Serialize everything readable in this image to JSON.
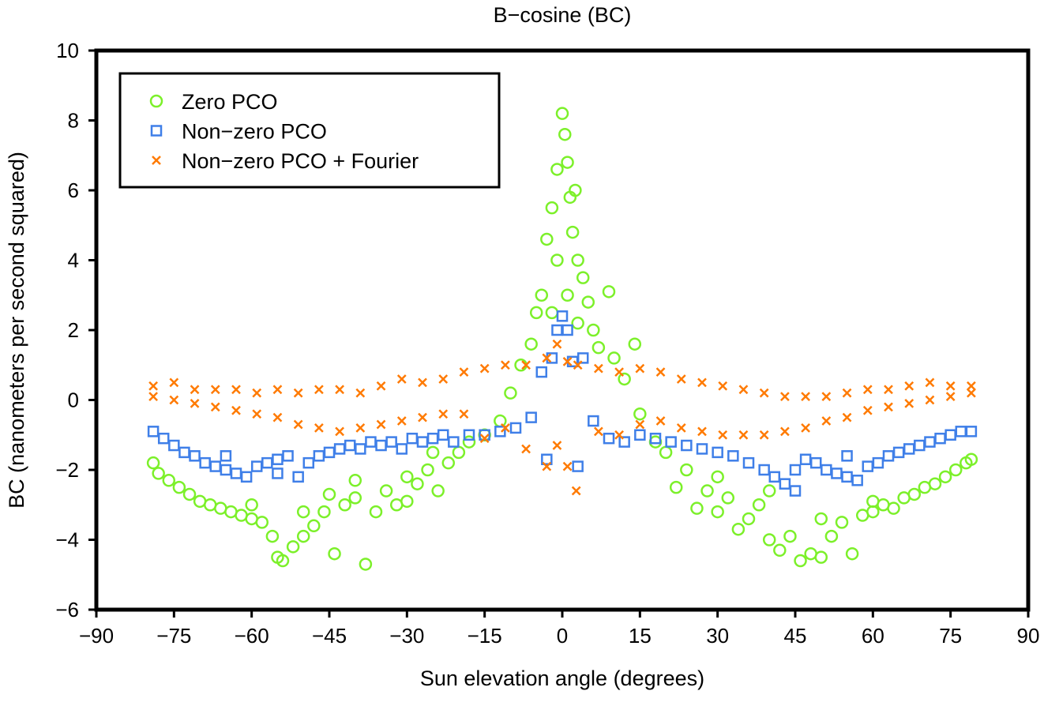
{
  "chart_data": {
    "type": "scatter",
    "title": "B−cosine (BC)",
    "xlabel": "Sun elevation angle (degrees)",
    "ylabel": "BC (nanometers per second squared)",
    "xlim": [
      -90,
      90
    ],
    "ylim": [
      -6,
      10
    ],
    "xticks": [
      -90,
      -75,
      -60,
      -45,
      -30,
      -15,
      0,
      15,
      30,
      45,
      60,
      75,
      90
    ],
    "xtick_labels": [
      "−90",
      "−75",
      "−60",
      "−45",
      "−30",
      "−15",
      "0",
      "15",
      "30",
      "45",
      "60",
      "75",
      "90"
    ],
    "yticks": [
      -6,
      -4,
      -2,
      0,
      2,
      4,
      6,
      8,
      10
    ],
    "ytick_labels": [
      "−6",
      "−4",
      "−2",
      "0",
      "2",
      "4",
      "6",
      "8",
      "10"
    ],
    "grid": false,
    "legend_position": "top-left",
    "series": [
      {
        "name": "Zero PCO",
        "marker": "circle",
        "color": "#7cf02a",
        "points": [
          [
            -79,
            -1.8
          ],
          [
            -78,
            -2.1
          ],
          [
            -76,
            -2.3
          ],
          [
            -74,
            -2.5
          ],
          [
            -72,
            -2.7
          ],
          [
            -70,
            -2.9
          ],
          [
            -68,
            -3.0
          ],
          [
            -66,
            -3.1
          ],
          [
            -64,
            -3.2
          ],
          [
            -62,
            -3.3
          ],
          [
            -60,
            -3.4
          ],
          [
            -58,
            -3.5
          ],
          [
            -56,
            -3.9
          ],
          [
            -55,
            -4.5
          ],
          [
            -54,
            -4.6
          ],
          [
            -52,
            -4.2
          ],
          [
            -50,
            -3.9
          ],
          [
            -48,
            -3.6
          ],
          [
            -46,
            -3.2
          ],
          [
            -44,
            -4.4
          ],
          [
            -42,
            -3.0
          ],
          [
            -40,
            -2.8
          ],
          [
            -38,
            -4.7
          ],
          [
            -36,
            -3.2
          ],
          [
            -34,
            -2.6
          ],
          [
            -32,
            -3.0
          ],
          [
            -30,
            -2.9
          ],
          [
            -28,
            -2.4
          ],
          [
            -26,
            -2.0
          ],
          [
            -24,
            -2.6
          ],
          [
            -22,
            -1.8
          ],
          [
            -20,
            -1.5
          ],
          [
            -18,
            -1.2
          ],
          [
            -15,
            -1.0
          ],
          [
            -12,
            -0.6
          ],
          [
            -10,
            0.2
          ],
          [
            -8,
            1.0
          ],
          [
            -6,
            1.6
          ],
          [
            -5,
            2.5
          ],
          [
            -4,
            3.0
          ],
          [
            -3,
            4.6
          ],
          [
            -2,
            5.5
          ],
          [
            -1,
            6.6
          ],
          [
            0,
            8.2
          ],
          [
            0.5,
            7.6
          ],
          [
            1,
            6.8
          ],
          [
            1.5,
            5.8
          ],
          [
            2,
            4.8
          ],
          [
            2.5,
            6.0
          ],
          [
            3,
            4.0
          ],
          [
            4,
            3.5
          ],
          [
            5,
            2.8
          ],
          [
            6,
            2.0
          ],
          [
            7,
            1.5
          ],
          [
            9,
            3.1
          ],
          [
            10,
            1.2
          ],
          [
            12,
            0.6
          ],
          [
            14,
            1.6
          ],
          [
            15,
            -0.4
          ],
          [
            18,
            -1.2
          ],
          [
            20,
            -1.5
          ],
          [
            22,
            -2.5
          ],
          [
            24,
            -2.0
          ],
          [
            26,
            -3.1
          ],
          [
            28,
            -2.6
          ],
          [
            30,
            -3.2
          ],
          [
            32,
            -2.8
          ],
          [
            34,
            -3.7
          ],
          [
            36,
            -3.4
          ],
          [
            38,
            -3.0
          ],
          [
            40,
            -4.0
          ],
          [
            42,
            -4.3
          ],
          [
            44,
            -3.9
          ],
          [
            46,
            -4.6
          ],
          [
            48,
            -4.4
          ],
          [
            50,
            -4.5
          ],
          [
            52,
            -3.9
          ],
          [
            54,
            -3.5
          ],
          [
            56,
            -4.4
          ],
          [
            58,
            -3.3
          ],
          [
            60,
            -3.2
          ],
          [
            62,
            -3.0
          ],
          [
            64,
            -3.1
          ],
          [
            66,
            -2.8
          ],
          [
            68,
            -2.7
          ],
          [
            70,
            -2.5
          ],
          [
            72,
            -2.4
          ],
          [
            74,
            -2.2
          ],
          [
            76,
            -2.0
          ],
          [
            78,
            -1.8
          ],
          [
            79,
            -1.7
          ],
          [
            -60,
            -3.0
          ],
          [
            -50,
            -3.2
          ],
          [
            -45,
            -2.7
          ],
          [
            -40,
            -2.3
          ],
          [
            -30,
            -2.2
          ],
          [
            -25,
            -1.5
          ],
          [
            30,
            -2.2
          ],
          [
            40,
            -2.6
          ],
          [
            50,
            -3.4
          ],
          [
            60,
            -2.9
          ],
          [
            -1,
            4.0
          ],
          [
            1,
            3.0
          ],
          [
            -2,
            2.5
          ],
          [
            3,
            2.2
          ]
        ]
      },
      {
        "name": "Non−zero PCO",
        "marker": "square",
        "color": "#3f7fe8",
        "points": [
          [
            -79,
            -0.9
          ],
          [
            -77,
            -1.1
          ],
          [
            -75,
            -1.3
          ],
          [
            -73,
            -1.5
          ],
          [
            -71,
            -1.6
          ],
          [
            -69,
            -1.8
          ],
          [
            -67,
            -1.9
          ],
          [
            -65,
            -2.0
          ],
          [
            -63,
            -2.1
          ],
          [
            -61,
            -2.2
          ],
          [
            -59,
            -1.9
          ],
          [
            -57,
            -1.8
          ],
          [
            -55,
            -1.7
          ],
          [
            -53,
            -1.6
          ],
          [
            -51,
            -2.2
          ],
          [
            -49,
            -1.8
          ],
          [
            -47,
            -1.6
          ],
          [
            -45,
            -1.5
          ],
          [
            -43,
            -1.4
          ],
          [
            -41,
            -1.3
          ],
          [
            -39,
            -1.4
          ],
          [
            -37,
            -1.2
          ],
          [
            -35,
            -1.3
          ],
          [
            -33,
            -1.2
          ],
          [
            -31,
            -1.4
          ],
          [
            -29,
            -1.1
          ],
          [
            -27,
            -1.2
          ],
          [
            -25,
            -1.1
          ],
          [
            -23,
            -1.0
          ],
          [
            -21,
            -1.2
          ],
          [
            -18,
            -1.0
          ],
          [
            -15,
            -1.0
          ],
          [
            -12,
            -0.9
          ],
          [
            -9,
            -0.8
          ],
          [
            -6,
            -0.5
          ],
          [
            -4,
            0.8
          ],
          [
            -3,
            -1.7
          ],
          [
            -2,
            1.2
          ],
          [
            -1,
            2.0
          ],
          [
            0,
            2.4
          ],
          [
            1,
            2.0
          ],
          [
            2,
            1.1
          ],
          [
            3,
            -1.9
          ],
          [
            4,
            1.2
          ],
          [
            6,
            -0.6
          ],
          [
            9,
            -1.1
          ],
          [
            12,
            -1.2
          ],
          [
            15,
            -1.0
          ],
          [
            18,
            -1.1
          ],
          [
            21,
            -1.2
          ],
          [
            24,
            -1.3
          ],
          [
            27,
            -1.4
          ],
          [
            30,
            -1.5
          ],
          [
            33,
            -1.6
          ],
          [
            36,
            -1.8
          ],
          [
            39,
            -2.0
          ],
          [
            41,
            -2.2
          ],
          [
            43,
            -2.4
          ],
          [
            45,
            -2.6
          ],
          [
            47,
            -1.7
          ],
          [
            49,
            -1.8
          ],
          [
            51,
            -2.0
          ],
          [
            53,
            -2.1
          ],
          [
            55,
            -2.2
          ],
          [
            57,
            -2.3
          ],
          [
            59,
            -1.9
          ],
          [
            61,
            -1.8
          ],
          [
            63,
            -1.6
          ],
          [
            65,
            -1.5
          ],
          [
            67,
            -1.4
          ],
          [
            69,
            -1.3
          ],
          [
            71,
            -1.2
          ],
          [
            73,
            -1.1
          ],
          [
            75,
            -1.0
          ],
          [
            77,
            -0.9
          ],
          [
            79,
            -0.9
          ],
          [
            -65,
            -1.6
          ],
          [
            -55,
            -2.1
          ],
          [
            45,
            -2.0
          ],
          [
            55,
            -1.6
          ]
        ]
      },
      {
        "name": "Non−zero PCO + Fourier",
        "marker": "x",
        "color": "#ff7a00",
        "points": [
          [
            -79,
            0.4
          ],
          [
            -79,
            0.1
          ],
          [
            -75,
            0.5
          ],
          [
            -75,
            0.0
          ],
          [
            -71,
            0.3
          ],
          [
            -71,
            -0.1
          ],
          [
            -67,
            0.3
          ],
          [
            -67,
            -0.2
          ],
          [
            -63,
            0.3
          ],
          [
            -63,
            -0.3
          ],
          [
            -59,
            0.2
          ],
          [
            -59,
            -0.4
          ],
          [
            -55,
            0.3
          ],
          [
            -55,
            -0.5
          ],
          [
            -51,
            0.2
          ],
          [
            -51,
            -0.7
          ],
          [
            -47,
            0.3
          ],
          [
            -47,
            -0.8
          ],
          [
            -43,
            0.3
          ],
          [
            -43,
            -0.9
          ],
          [
            -39,
            0.2
          ],
          [
            -39,
            -0.8
          ],
          [
            -35,
            0.4
          ],
          [
            -35,
            -0.7
          ],
          [
            -31,
            0.6
          ],
          [
            -31,
            -0.6
          ],
          [
            -27,
            0.5
          ],
          [
            -27,
            -0.5
          ],
          [
            -23,
            0.6
          ],
          [
            -23,
            -0.4
          ],
          [
            -19,
            0.8
          ],
          [
            -19,
            -0.4
          ],
          [
            -15,
            0.9
          ],
          [
            -15,
            -1.1
          ],
          [
            -11,
            1.0
          ],
          [
            -11,
            -0.8
          ],
          [
            -7,
            1.0
          ],
          [
            -7,
            -1.4
          ],
          [
            -3,
            1.2
          ],
          [
            -3,
            -1.9
          ],
          [
            -1,
            1.6
          ],
          [
            -1,
            -1.3
          ],
          [
            1,
            1.1
          ],
          [
            1,
            -1.9
          ],
          [
            3,
            1.0
          ],
          [
            2.7,
            -2.6
          ],
          [
            7,
            0.9
          ],
          [
            7,
            -0.9
          ],
          [
            11,
            0.8
          ],
          [
            11,
            -1.0
          ],
          [
            15,
            0.9
          ],
          [
            15,
            -0.7
          ],
          [
            19,
            0.8
          ],
          [
            19,
            -0.6
          ],
          [
            23,
            0.6
          ],
          [
            23,
            -0.8
          ],
          [
            27,
            0.5
          ],
          [
            27,
            -0.9
          ],
          [
            31,
            0.4
          ],
          [
            31,
            -1.0
          ],
          [
            35,
            0.3
          ],
          [
            35,
            -1.0
          ],
          [
            39,
            0.2
          ],
          [
            39,
            -1.0
          ],
          [
            43,
            0.1
          ],
          [
            43,
            -0.9
          ],
          [
            47,
            0.1
          ],
          [
            47,
            -0.8
          ],
          [
            51,
            0.1
          ],
          [
            51,
            -0.6
          ],
          [
            55,
            0.2
          ],
          [
            55,
            -0.5
          ],
          [
            59,
            0.3
          ],
          [
            59,
            -0.3
          ],
          [
            63,
            0.3
          ],
          [
            63,
            -0.2
          ],
          [
            67,
            0.4
          ],
          [
            67,
            -0.1
          ],
          [
            71,
            0.5
          ],
          [
            71,
            0.0
          ],
          [
            75,
            0.4
          ],
          [
            75,
            0.1
          ],
          [
            79,
            0.4
          ],
          [
            79,
            0.2
          ]
        ]
      }
    ]
  }
}
